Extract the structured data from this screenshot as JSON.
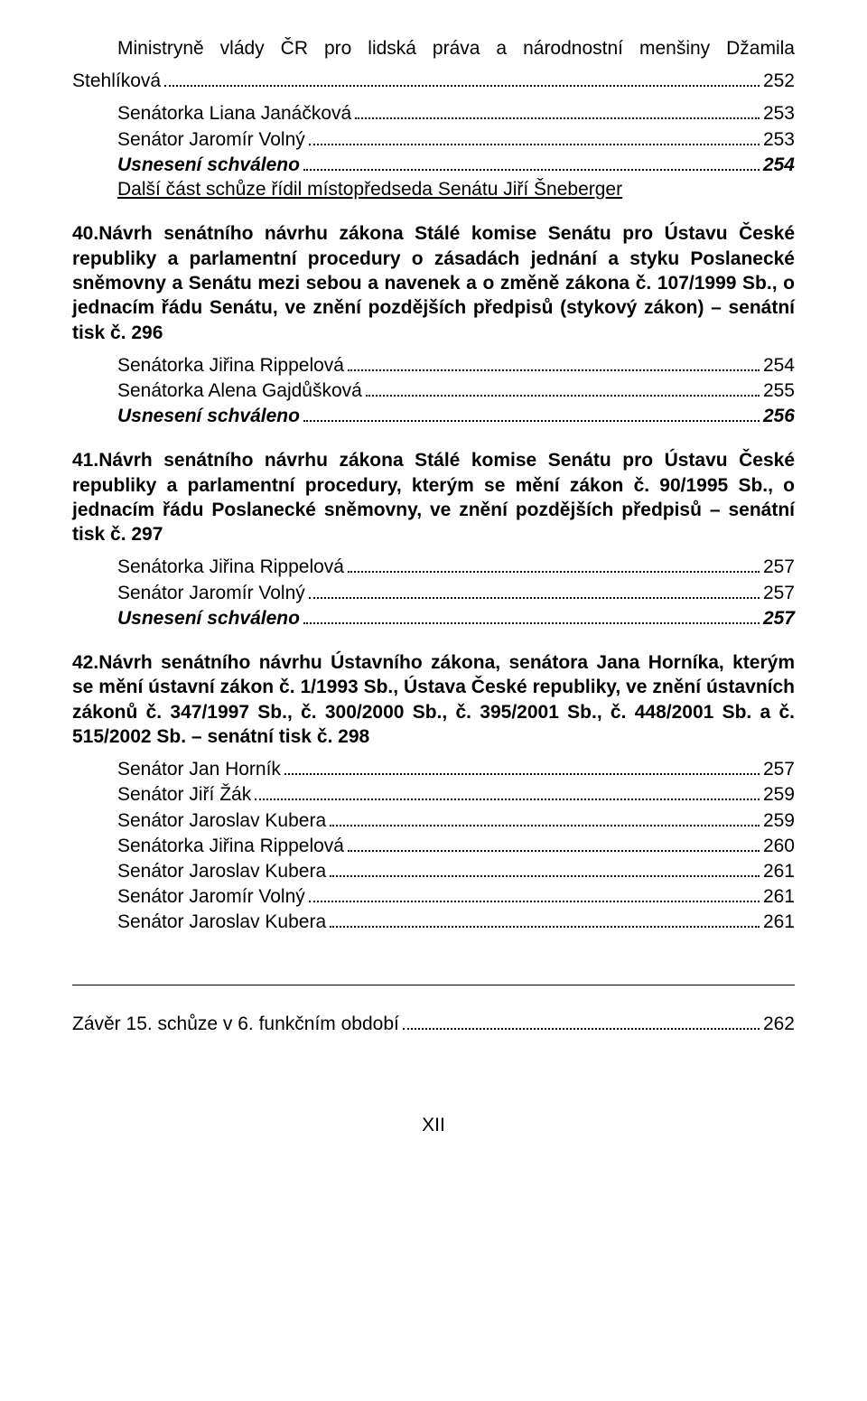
{
  "font": {
    "family": "Arial, Helvetica, sans-serif",
    "base_size_pt": 16,
    "color": "#000000"
  },
  "colors": {
    "background": "#ffffff",
    "dot_leader": "#000000",
    "rule": "#000000"
  },
  "block0": {
    "title_line1": "Ministryně vlády ČR pro lidská práva a národnostní menšiny Džamila",
    "title_line2_label": "Stehlíková",
    "title_line2_page": "252",
    "rows": [
      {
        "label": "Senátorka Liana Janáčková",
        "page": "253",
        "style": "normal"
      },
      {
        "label": "Senátor Jaromír Volný",
        "page": "253",
        "style": "normal"
      },
      {
        "label": "Usnesení schváleno",
        "page": "254",
        "style": "bolditalic"
      },
      {
        "label": "Další část schůze řídil místopředseda Senátu Jiří Šneberger",
        "page": "",
        "style": "normal",
        "underline": true
      }
    ]
  },
  "section40": {
    "num": "40.",
    "title": "Návrh senátního návrhu zákona Stálé komise Senátu pro Ústavu České republiky a parlamentní procedury o zásadách jednání a styku Poslanecké sněmovny a Senátu mezi sebou a navenek a o změně zákona č. 107/1999 Sb., o jednacím řádu Senátu, ve znění pozdějších předpisů (stykový zákon) – senátní tisk č. 296",
    "rows": [
      {
        "label": "Senátorka Jiřina Rippelová",
        "page": "254",
        "style": "normal"
      },
      {
        "label": "Senátorka Alena Gajdůšková",
        "page": "255",
        "style": "normal"
      },
      {
        "label": "Usnesení schváleno",
        "page": "256",
        "style": "bolditalic"
      }
    ]
  },
  "section41": {
    "num": "41.",
    "title": "Návrh senátního návrhu zákona Stálé komise Senátu pro Ústavu České republiky a parlamentní procedury, kterým se mění zákon č. 90/1995 Sb., o jednacím řádu Poslanecké sněmovny, ve znění pozdějších předpisů – senátní tisk č. 297",
    "rows": [
      {
        "label": "Senátorka Jiřina Rippelová",
        "page": "257",
        "style": "normal"
      },
      {
        "label": "Senátor Jaromír Volný",
        "page": "257",
        "style": "normal"
      },
      {
        "label": "Usnesení schváleno",
        "page": "257",
        "style": "bolditalic"
      }
    ]
  },
  "section42": {
    "num": "42.",
    "title": "Návrh senátního návrhu Ústavního zákona, senátora Jana Horníka, kterým se mění ústavní zákon č. 1/1993 Sb., Ústava České republiky, ve znění ústavních zákonů č. 347/1997 Sb., č. 300/2000 Sb., č. 395/2001 Sb., č. 448/2001 Sb. a č. 515/2002 Sb. – senátní tisk č. 298",
    "rows": [
      {
        "label": "Senátor Jan Horník",
        "page": "257",
        "style": "normal"
      },
      {
        "label": "Senátor Jiří Žák",
        "page": "259",
        "style": "normal"
      },
      {
        "label": "Senátor Jaroslav Kubera",
        "page": "259",
        "style": "normal"
      },
      {
        "label": "Senátorka Jiřina Rippelová",
        "page": "260",
        "style": "normal"
      },
      {
        "label": "Senátor Jaroslav Kubera",
        "page": "261",
        "style": "normal"
      },
      {
        "label": "Senátor Jaromír Volný",
        "page": "261",
        "style": "normal"
      },
      {
        "label": "Senátor Jaroslav Kubera",
        "page": "261",
        "style": "normal"
      }
    ]
  },
  "closing": {
    "label": "Závěr 15. schůze v 6. funkčním období",
    "page": "262"
  },
  "footer": {
    "text": "XII"
  }
}
